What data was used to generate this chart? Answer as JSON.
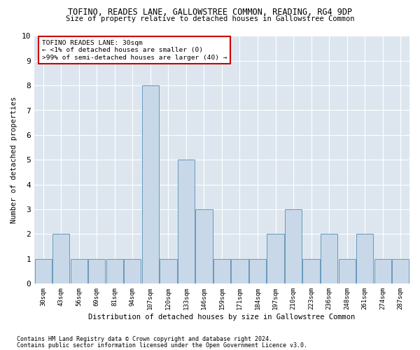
{
  "title": "TOFINO, READES LANE, GALLOWSTREE COMMON, READING, RG4 9DP",
  "subtitle": "Size of property relative to detached houses in Gallowstree Common",
  "xlabel": "Distribution of detached houses by size in Gallowstree Common",
  "ylabel": "Number of detached properties",
  "categories": [
    "30sqm",
    "43sqm",
    "56sqm",
    "69sqm",
    "81sqm",
    "94sqm",
    "107sqm",
    "120sqm",
    "133sqm",
    "146sqm",
    "159sqm",
    "171sqm",
    "184sqm",
    "197sqm",
    "210sqm",
    "223sqm",
    "236sqm",
    "248sqm",
    "261sqm",
    "274sqm",
    "287sqm"
  ],
  "values": [
    1,
    2,
    1,
    1,
    1,
    1,
    8,
    1,
    5,
    3,
    1,
    1,
    1,
    2,
    3,
    1,
    2,
    1,
    2,
    1,
    1
  ],
  "bar_color": "#c8d8e8",
  "bar_edgecolor": "#6899bb",
  "background_color": "#dde6ef",
  "ylim": [
    0,
    10
  ],
  "yticks": [
    0,
    1,
    2,
    3,
    4,
    5,
    6,
    7,
    8,
    9,
    10
  ],
  "annotation_title": "TOFINO READES LANE: 30sqm",
  "annotation_line1": "← <1% of detached houses are smaller (0)",
  "annotation_line2": ">99% of semi-detached houses are larger (40) →",
  "annotation_box_color": "#ffffff",
  "annotation_box_edgecolor": "#cc0000",
  "footer1": "Contains HM Land Registry data © Crown copyright and database right 2024.",
  "footer2": "Contains public sector information licensed under the Open Government Licence v3.0."
}
